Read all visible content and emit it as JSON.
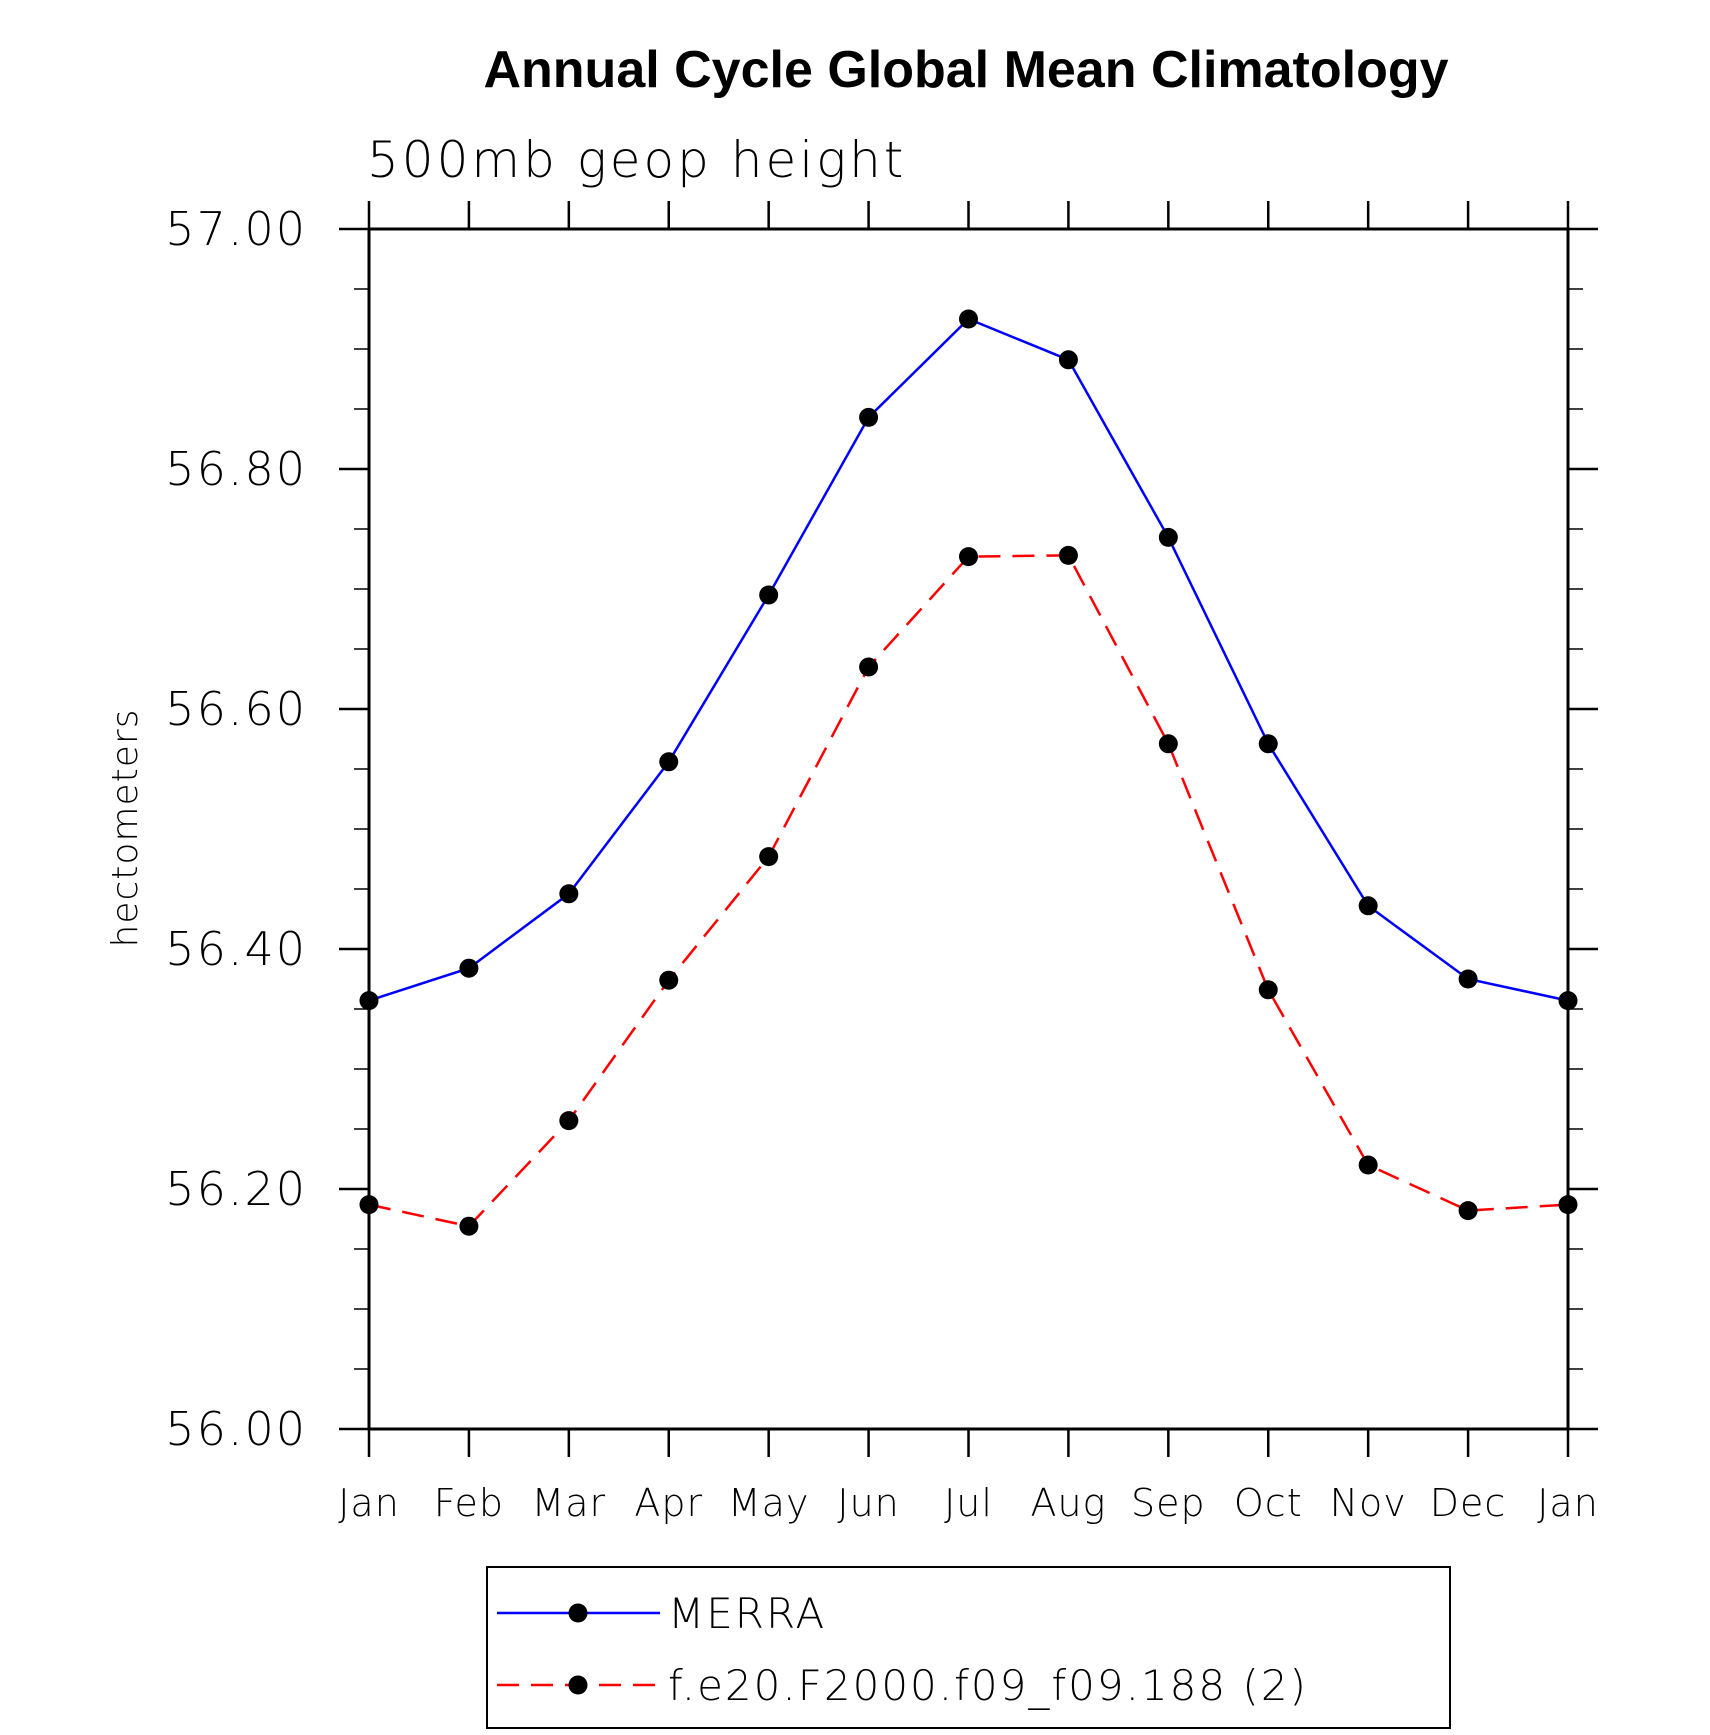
{
  "chart_data": {
    "type": "line",
    "title": "Annual Cycle Global Mean Climatology",
    "subtitle": "500mb geop height",
    "ylabel": "hectometers",
    "categories": [
      "Jan",
      "Feb",
      "Mar",
      "Apr",
      "May",
      "Jun",
      "Jul",
      "Aug",
      "Sep",
      "Oct",
      "Nov",
      "Dec",
      "Jan"
    ],
    "ylim": [
      56.0,
      57.0
    ],
    "yticks": [
      56.0,
      56.2,
      56.4,
      56.6,
      56.8,
      57.0
    ],
    "ytick_labels": [
      "56.00",
      "56.20",
      "56.40",
      "56.60",
      "56.80",
      "57.00"
    ],
    "legend_placement": "bottom",
    "series": [
      {
        "name": "MERRA",
        "color": "#0000ff",
        "dash": "solid",
        "values": [
          56.357,
          56.384,
          56.446,
          56.556,
          56.695,
          56.843,
          56.925,
          56.891,
          56.743,
          56.571,
          56.436,
          56.375,
          56.357
        ]
      },
      {
        "name": "f.e20.F2000.f09_f09.188 (2)",
        "color": "#ff0000",
        "dash": "dashed",
        "values": [
          56.187,
          56.169,
          56.257,
          56.374,
          56.477,
          56.635,
          56.727,
          56.728,
          56.571,
          56.366,
          56.22,
          56.182,
          56.187
        ]
      }
    ]
  }
}
